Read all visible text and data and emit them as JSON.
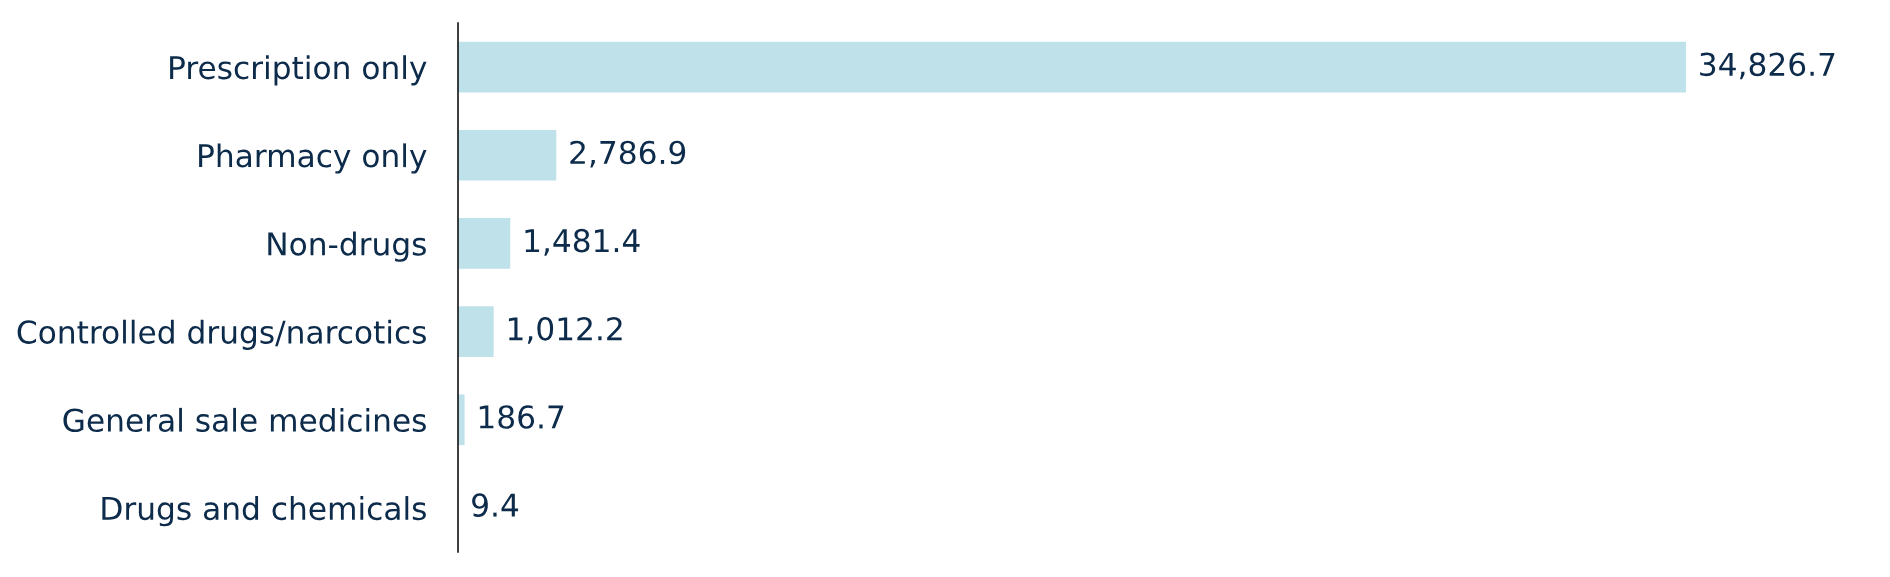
{
  "chart_data": {
    "type": "bar",
    "orientation": "horizontal",
    "categories": [
      "Prescription only",
      "Pharmacy only",
      "Non-drugs",
      "Controlled drugs/narcotics",
      "General sale medicines",
      "Drugs and chemicals"
    ],
    "values": [
      34826.7,
      2786.9,
      1481.4,
      1012.2,
      186.7,
      9.4
    ],
    "value_labels": [
      "34,826.7",
      "2,786.9",
      "1,481.4",
      "1,012.2",
      "186.7",
      "9.4"
    ],
    "color": "#bfe1ea",
    "tick_labels": "y"
  }
}
